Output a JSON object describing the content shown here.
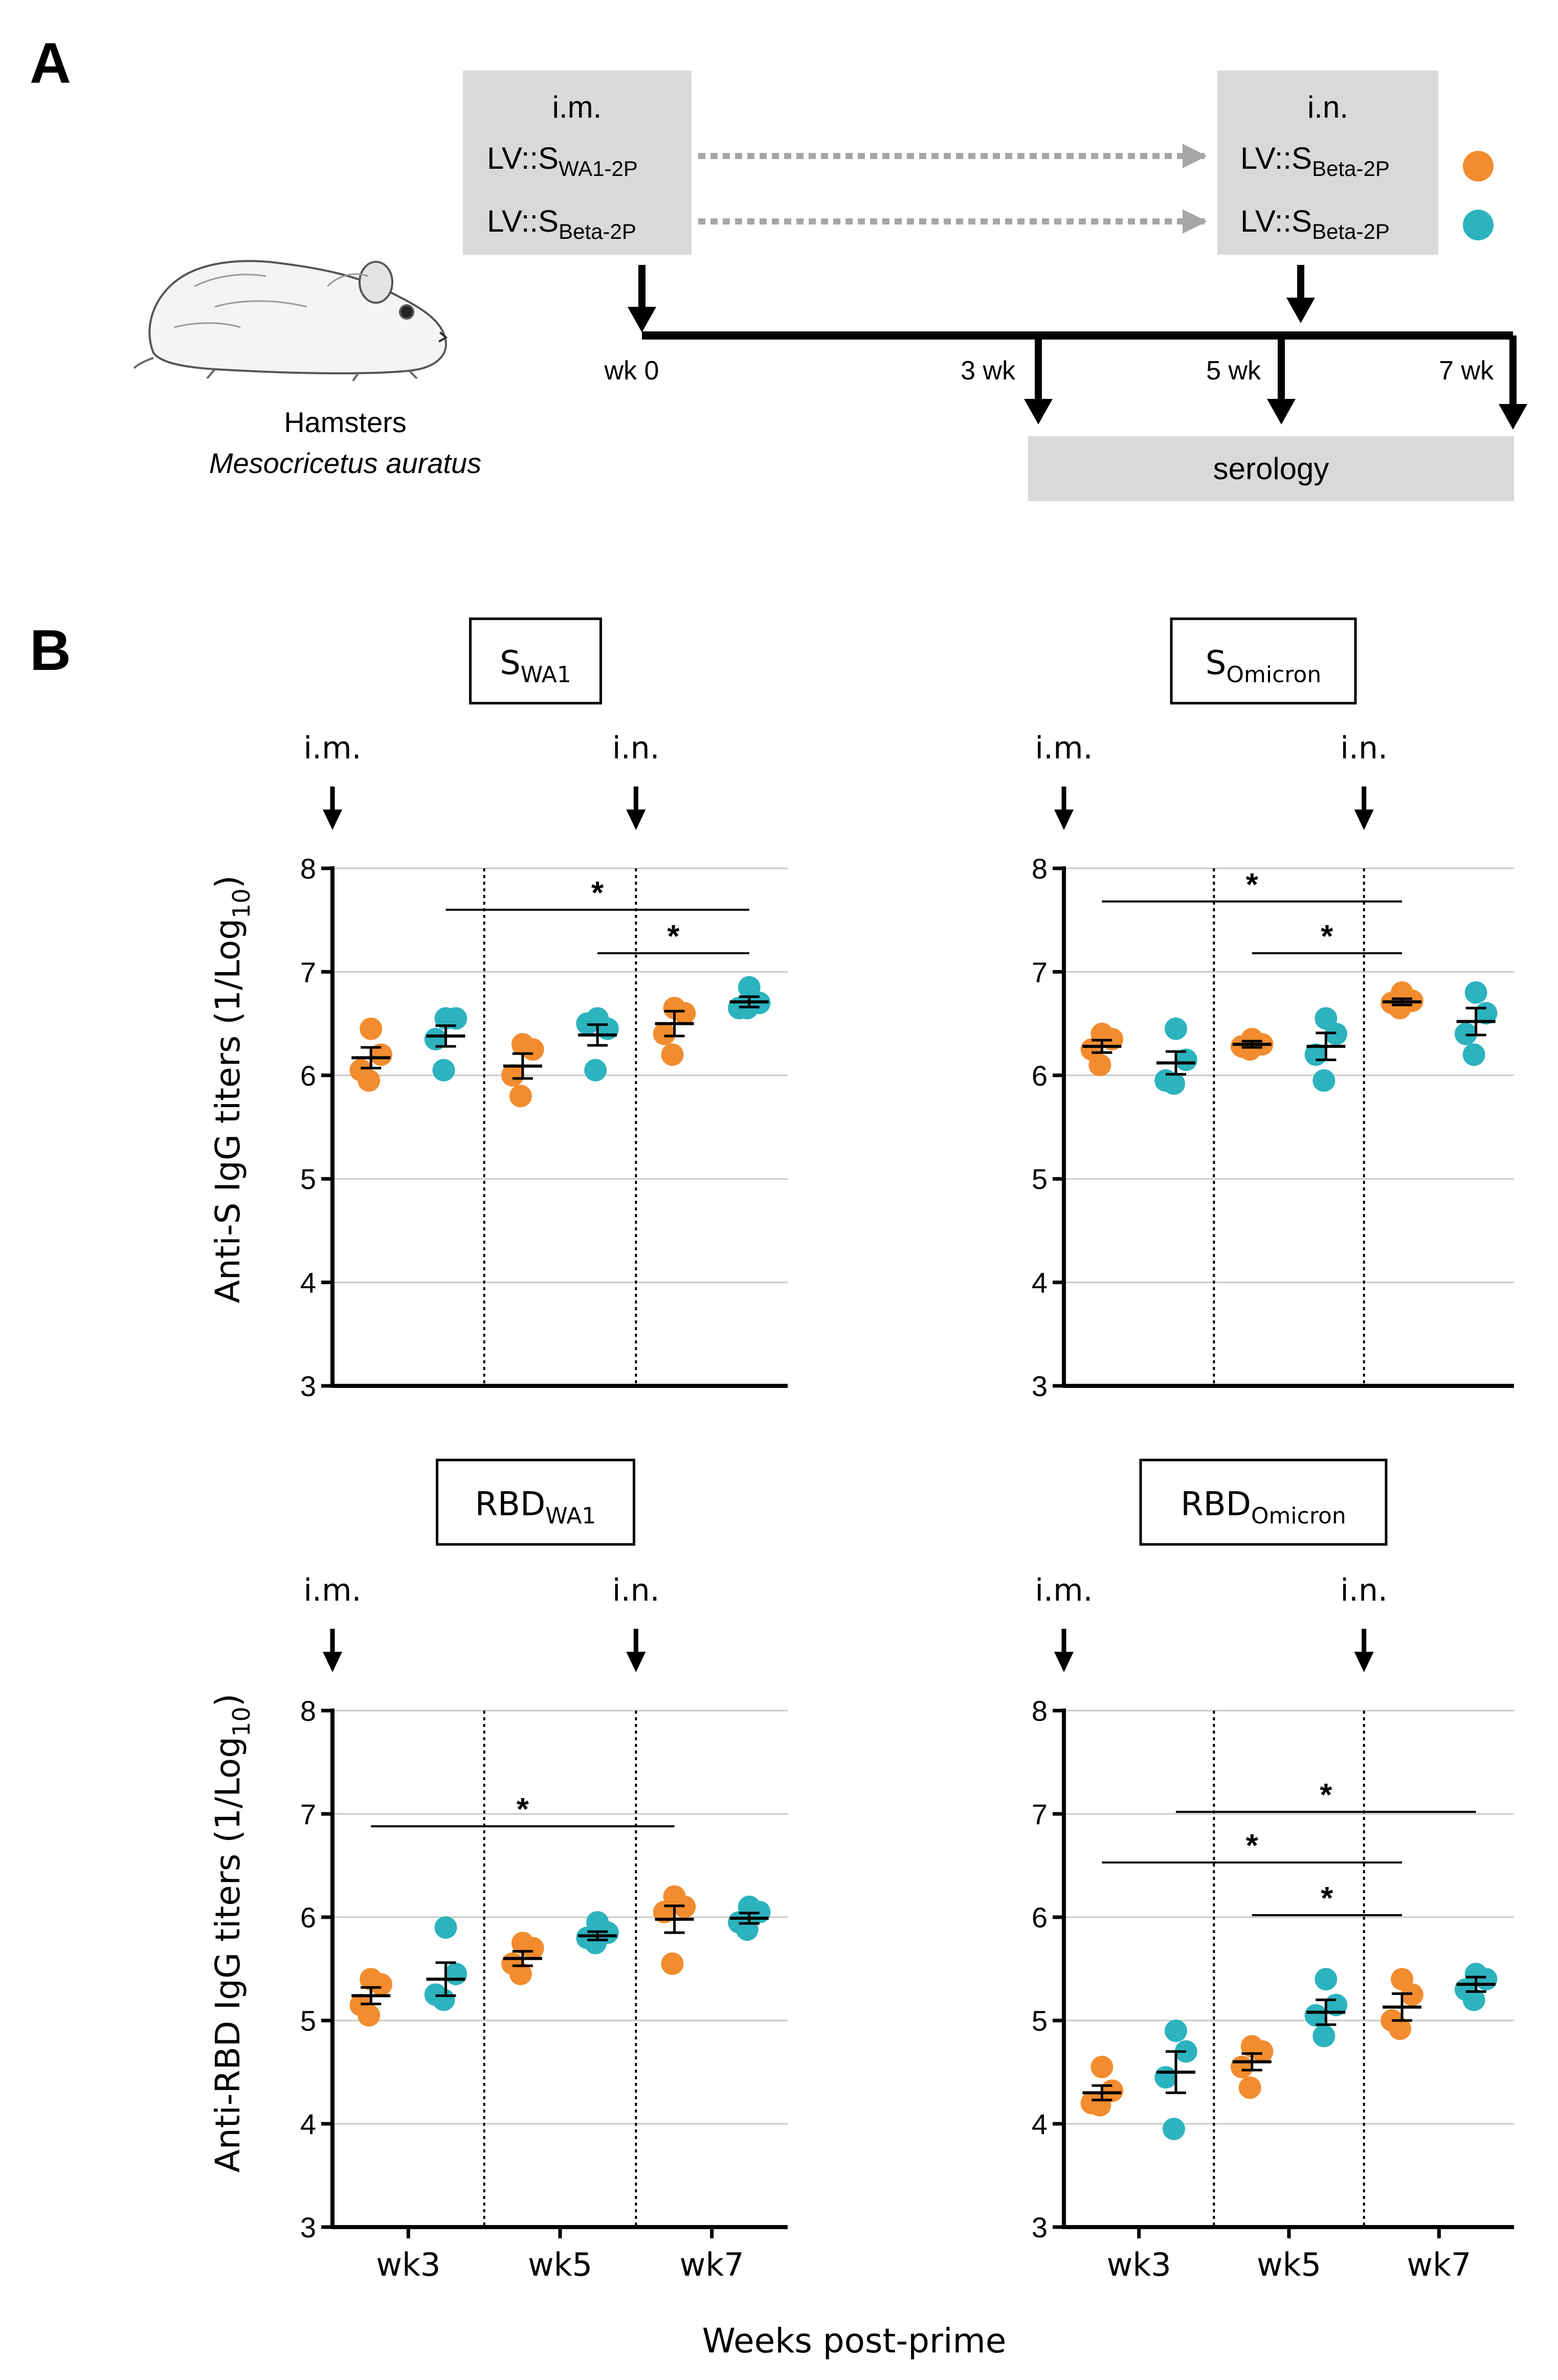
{
  "panel_a": {
    "label": "A",
    "prime_box": {
      "route": "i.m.",
      "rows": [
        {
          "main": "LV::S",
          "sub": "WA1-2P"
        },
        {
          "main": "LV::S",
          "sub": "Beta-2P"
        }
      ]
    },
    "boost_box": {
      "route": "i.n.",
      "rows": [
        {
          "main": "LV::S",
          "sub": "Beta-2P"
        },
        {
          "main": "LV::S",
          "sub": "Beta-2P"
        }
      ]
    },
    "timeline_labels": [
      "wk 0",
      "3 wk",
      "5 wk",
      "7 wk"
    ],
    "serology_label": "serology",
    "species_common": "Hamsters",
    "species_latin": "Mesocricetus auratus"
  },
  "colors": {
    "group1": "#F28C2E",
    "group2": "#2CB3BE"
  },
  "panel_b_label": "B",
  "x_axis_title": "Weeks post-prime",
  "route_labels": {
    "prime": "i.m.",
    "boost": "i.n."
  },
  "sig_marker": "*",
  "y_title_s": {
    "main": "Anti-S IgG titers (1/Log",
    "sub": "10",
    "end": ")"
  },
  "y_title_rbd": {
    "main": "Anti-RBD IgG titers (1/Log",
    "sub": "10",
    "end": ")"
  },
  "chart_data": [
    {
      "type": "scatter",
      "title": {
        "main": "S",
        "sub": "WA1"
      },
      "categories": [
        "wk3",
        "wk5",
        "wk7"
      ],
      "ylim": [
        3,
        8
      ],
      "yticks": [
        3,
        4,
        5,
        6,
        7,
        8
      ],
      "series": [
        {
          "name": "LV::SWA1-2P i.m. / LV::SBeta-2P i.n.",
          "color_key": "group1",
          "points": [
            [
              6.45,
              6.2,
              6.05,
              5.95
            ],
            [
              6.3,
              6.25,
              6.0,
              5.8
            ],
            [
              6.65,
              6.6,
              6.4,
              6.2
            ]
          ],
          "mean": [
            6.17,
            6.09,
            6.5
          ],
          "sem": [
            0.1,
            0.12,
            0.12
          ]
        },
        {
          "name": "LV::SBeta-2P i.m. / LV::SBeta-2P i.n.",
          "color_key": "group2",
          "points": [
            [
              6.55,
              6.55,
              6.35,
              6.05
            ],
            [
              6.55,
              6.45,
              6.5,
              6.05
            ],
            [
              6.85,
              6.7,
              6.65,
              6.65
            ]
          ],
          "mean": [
            6.38,
            6.39,
            6.71
          ],
          "sem": [
            0.1,
            0.1,
            0.05
          ]
        }
      ],
      "significance": [
        {
          "from": [
            0,
            1
          ],
          "to": [
            2,
            1
          ],
          "y": 7.6
        },
        {
          "from": [
            1,
            1
          ],
          "to": [
            2,
            1
          ],
          "y": 7.18
        }
      ]
    },
    {
      "type": "scatter",
      "title": {
        "main": "S",
        "sub": "Omicron"
      },
      "categories": [
        "wk3",
        "wk5",
        "wk7"
      ],
      "ylim": [
        3,
        8
      ],
      "yticks": [
        3,
        4,
        5,
        6,
        7,
        8
      ],
      "series": [
        {
          "name": "LV::SWA1-2P i.m. / LV::SBeta-2P i.n.",
          "color_key": "group1",
          "points": [
            [
              6.4,
              6.35,
              6.25,
              6.1
            ],
            [
              6.35,
              6.3,
              6.28,
              6.25
            ],
            [
              6.8,
              6.72,
              6.7,
              6.65
            ]
          ],
          "mean": [
            6.28,
            6.3,
            6.71
          ],
          "sem": [
            0.06,
            0.03,
            0.03
          ]
        },
        {
          "name": "LV::SBeta-2P i.m. / LV::SBeta-2P i.n.",
          "color_key": "group2",
          "points": [
            [
              6.45,
              6.15,
              5.95,
              5.92
            ],
            [
              6.55,
              6.4,
              6.2,
              5.95
            ],
            [
              6.8,
              6.6,
              6.4,
              6.2
            ]
          ],
          "mean": [
            6.12,
            6.28,
            6.52
          ],
          "sem": [
            0.11,
            0.13,
            0.13
          ]
        }
      ],
      "significance": [
        {
          "from": [
            0,
            0
          ],
          "to": [
            2,
            0
          ],
          "y": 7.68
        },
        {
          "from": [
            1,
            0
          ],
          "to": [
            2,
            0
          ],
          "y": 7.18
        }
      ]
    },
    {
      "type": "scatter",
      "title": {
        "main": "RBD",
        "sub": "WA1"
      },
      "categories": [
        "wk3",
        "wk5",
        "wk7"
      ],
      "ylim": [
        3,
        8
      ],
      "yticks": [
        3,
        4,
        5,
        6,
        7,
        8
      ],
      "series": [
        {
          "name": "LV::SWA1-2P i.m. / LV::SBeta-2P i.n.",
          "color_key": "group1",
          "points": [
            [
              5.4,
              5.35,
              5.15,
              5.05
            ],
            [
              5.75,
              5.7,
              5.55,
              5.45
            ],
            [
              6.2,
              6.1,
              6.05,
              5.55
            ]
          ],
          "mean": [
            5.24,
            5.6,
            5.98
          ],
          "sem": [
            0.08,
            0.07,
            0.13
          ]
        },
        {
          "name": "LV::SBeta-2P i.m. / LV::SBeta-2P i.n.",
          "color_key": "group2",
          "points": [
            [
              5.9,
              5.45,
              5.25,
              5.2
            ],
            [
              5.95,
              5.85,
              5.8,
              5.75
            ],
            [
              6.1,
              6.05,
              5.95,
              5.88
            ]
          ],
          "mean": [
            5.4,
            5.82,
            5.99
          ],
          "sem": [
            0.16,
            0.04,
            0.05
          ]
        }
      ],
      "significance": [
        {
          "from": [
            0,
            0
          ],
          "to": [
            2,
            0
          ],
          "y": 6.88
        }
      ]
    },
    {
      "type": "scatter",
      "title": {
        "main": "RBD",
        "sub": "Omicron"
      },
      "categories": [
        "wk3",
        "wk5",
        "wk7"
      ],
      "ylim": [
        3,
        8
      ],
      "yticks": [
        3,
        4,
        5,
        6,
        7,
        8
      ],
      "series": [
        {
          "name": "LV::SWA1-2P i.m. / LV::SBeta-2P i.n.",
          "color_key": "group1",
          "points": [
            [
              4.55,
              4.32,
              4.2,
              4.18
            ],
            [
              4.75,
              4.7,
              4.55,
              4.35
            ],
            [
              5.4,
              5.25,
              5.0,
              4.92
            ]
          ],
          "mean": [
            4.3,
            4.6,
            5.13
          ],
          "sem": [
            0.07,
            0.08,
            0.13
          ]
        },
        {
          "name": "LV::SBeta-2P i.m. / LV::SBeta-2P i.n.",
          "color_key": "group2",
          "points": [
            [
              4.9,
              4.7,
              4.45,
              3.95
            ],
            [
              5.4,
              5.15,
              5.05,
              4.85
            ],
            [
              5.45,
              5.4,
              5.3,
              5.2
            ]
          ],
          "mean": [
            4.5,
            5.08,
            5.35
          ],
          "sem": [
            0.2,
            0.12,
            0.07
          ]
        }
      ],
      "significance": [
        {
          "from": [
            0,
            1
          ],
          "to": [
            2,
            1
          ],
          "y": 7.02
        },
        {
          "from": [
            0,
            0
          ],
          "to": [
            2,
            0
          ],
          "y": 6.53
        },
        {
          "from": [
            1,
            0
          ],
          "to": [
            2,
            0
          ],
          "y": 6.02
        }
      ]
    }
  ]
}
